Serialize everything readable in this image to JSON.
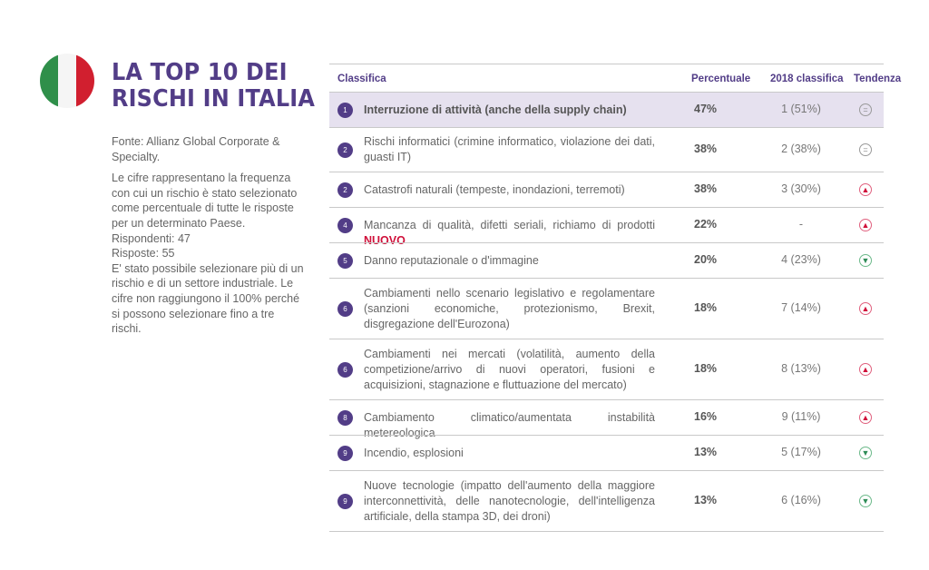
{
  "flag": {
    "colors": [
      "#2f8f4a",
      "#f5f5f5",
      "#d11f2f"
    ]
  },
  "title": {
    "line1": "LA TOP 10 DEI",
    "line2": "RISCHI IN ITALIA"
  },
  "notes": {
    "source": "Fonte: Allianz Global Corporate & Specialty.",
    "description": "Le cifre rappresentano la frequenza con cui un rischio è stato selezionato come percentuale di tutte le risposte per un determinato Paese.",
    "respondents": "Rispondenti: 47",
    "responses": "Risposte: 55",
    "multi": "E' stato possibile selezionare più di un rischio e di un settore industriale. Le cifre non raggiungono il 100% perché si possono selezionare fino a tre rischi."
  },
  "table": {
    "headers": {
      "rank": "Classifica",
      "percentage": "Percentuale",
      "previous": "2018 classifica",
      "trend": "Tendenza"
    },
    "new_label": "NUOVO",
    "rows": [
      {
        "rank": "1",
        "risk": "Interruzione di attività (anche della supply chain)",
        "percentage": "47%",
        "previous": "1 (51%)",
        "trend": "=",
        "trend_dir": "same",
        "is_new": false
      },
      {
        "rank": "2",
        "risk": "Rischi informatici (crimine informatico, violazione dei dati, guasti IT)",
        "percentage": "38%",
        "previous": "2 (38%)",
        "trend": "=",
        "trend_dir": "same",
        "is_new": false
      },
      {
        "rank": "2",
        "risk": "Catastrofi naturali (tempeste, inondazioni, terremoti)",
        "percentage": "38%",
        "previous": "3 (30%)",
        "trend": "▲",
        "trend_dir": "up",
        "is_new": false
      },
      {
        "rank": "4",
        "risk": "Mancanza di qualità, difetti seriali, richiamo di prodotti",
        "percentage": "22%",
        "previous": "-",
        "trend": "▲",
        "trend_dir": "up",
        "is_new": true
      },
      {
        "rank": "5",
        "risk": "Danno reputazionale o d'immagine",
        "percentage": "20%",
        "previous": "4 (23%)",
        "trend": "▼",
        "trend_dir": "down",
        "is_new": false
      },
      {
        "rank": "6",
        "risk": "Cambiamenti nello scenario legislativo e regolamentare (sanzioni economiche, protezionismo, Brexit, disgregazione dell'Eurozona)",
        "percentage": "18%",
        "previous": "7 (14%)",
        "trend": "▲",
        "trend_dir": "up",
        "is_new": false
      },
      {
        "rank": "6",
        "risk": "Cambiamenti nei mercati (volatilità, aumento della competizione/arrivo di nuovi operatori, fusioni e acquisizioni, stagnazione e fluttuazione del mercato)",
        "percentage": "18%",
        "previous": "8 (13%)",
        "trend": "▲",
        "trend_dir": "up",
        "is_new": false
      },
      {
        "rank": "8",
        "risk": "Cambiamento climatico/aumentata instabilità metereologica",
        "percentage": "16%",
        "previous": "9 (11%)",
        "trend": "▲",
        "trend_dir": "up",
        "is_new": false
      },
      {
        "rank": "9",
        "risk": "Incendio, esplosioni",
        "percentage": "13%",
        "previous": "5 (17%)",
        "trend": "▼",
        "trend_dir": "down",
        "is_new": false
      },
      {
        "rank": "9",
        "risk": "Nuove tecnologie (impatto dell'aumento della maggiore interconnettività, delle nanotecnologie, dell'intelligenza artificiale, della stampa 3D, dei droni)",
        "percentage": "13%",
        "previous": "6 (16%)",
        "trend": "▼",
        "trend_dir": "down",
        "is_new": false
      }
    ]
  }
}
